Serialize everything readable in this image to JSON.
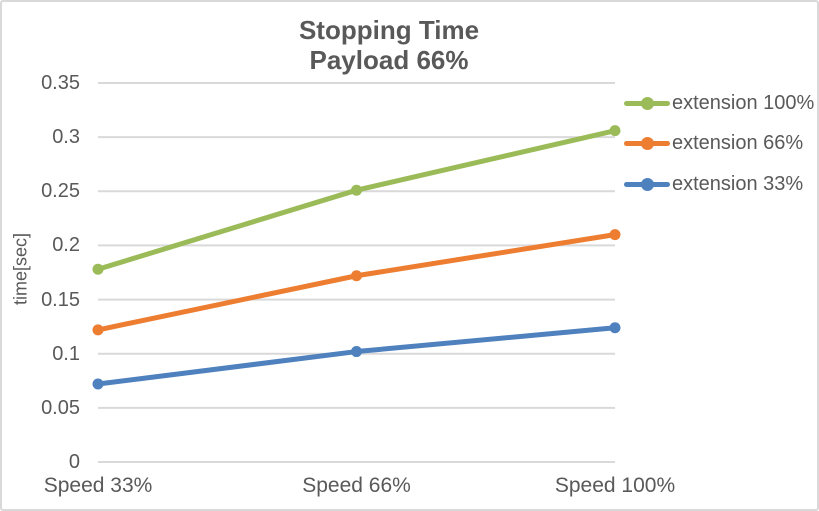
{
  "chart_data": {
    "type": "line",
    "title": "Stopping Time",
    "subtitle": "Payload 66%",
    "xlabel": "",
    "ylabel": "time[sec]",
    "categories": [
      "Speed 33%",
      "Speed 66%",
      "Speed 100%"
    ],
    "series": [
      {
        "name": "extension 100%",
        "color": "#9BBB59",
        "values": [
          0.178,
          0.251,
          0.306
        ]
      },
      {
        "name": "extension 66%",
        "color": "#ED7D31",
        "values": [
          0.122,
          0.172,
          0.21
        ]
      },
      {
        "name": "extension 33%",
        "color": "#4E81BD",
        "values": [
          0.072,
          0.102,
          0.124
        ]
      }
    ],
    "ylim": [
      0,
      0.35
    ],
    "yticks": [
      "0",
      "0.05",
      "0.1",
      "0.15",
      "0.2",
      "0.25",
      "0.3",
      "0.35"
    ],
    "grid": true,
    "legend_position": "right",
    "marker": "circle"
  },
  "colors": {
    "text": "#595959",
    "gridline": "#D9D9D9",
    "background": "#FFFFFF",
    "border": "#D9D9D9"
  }
}
